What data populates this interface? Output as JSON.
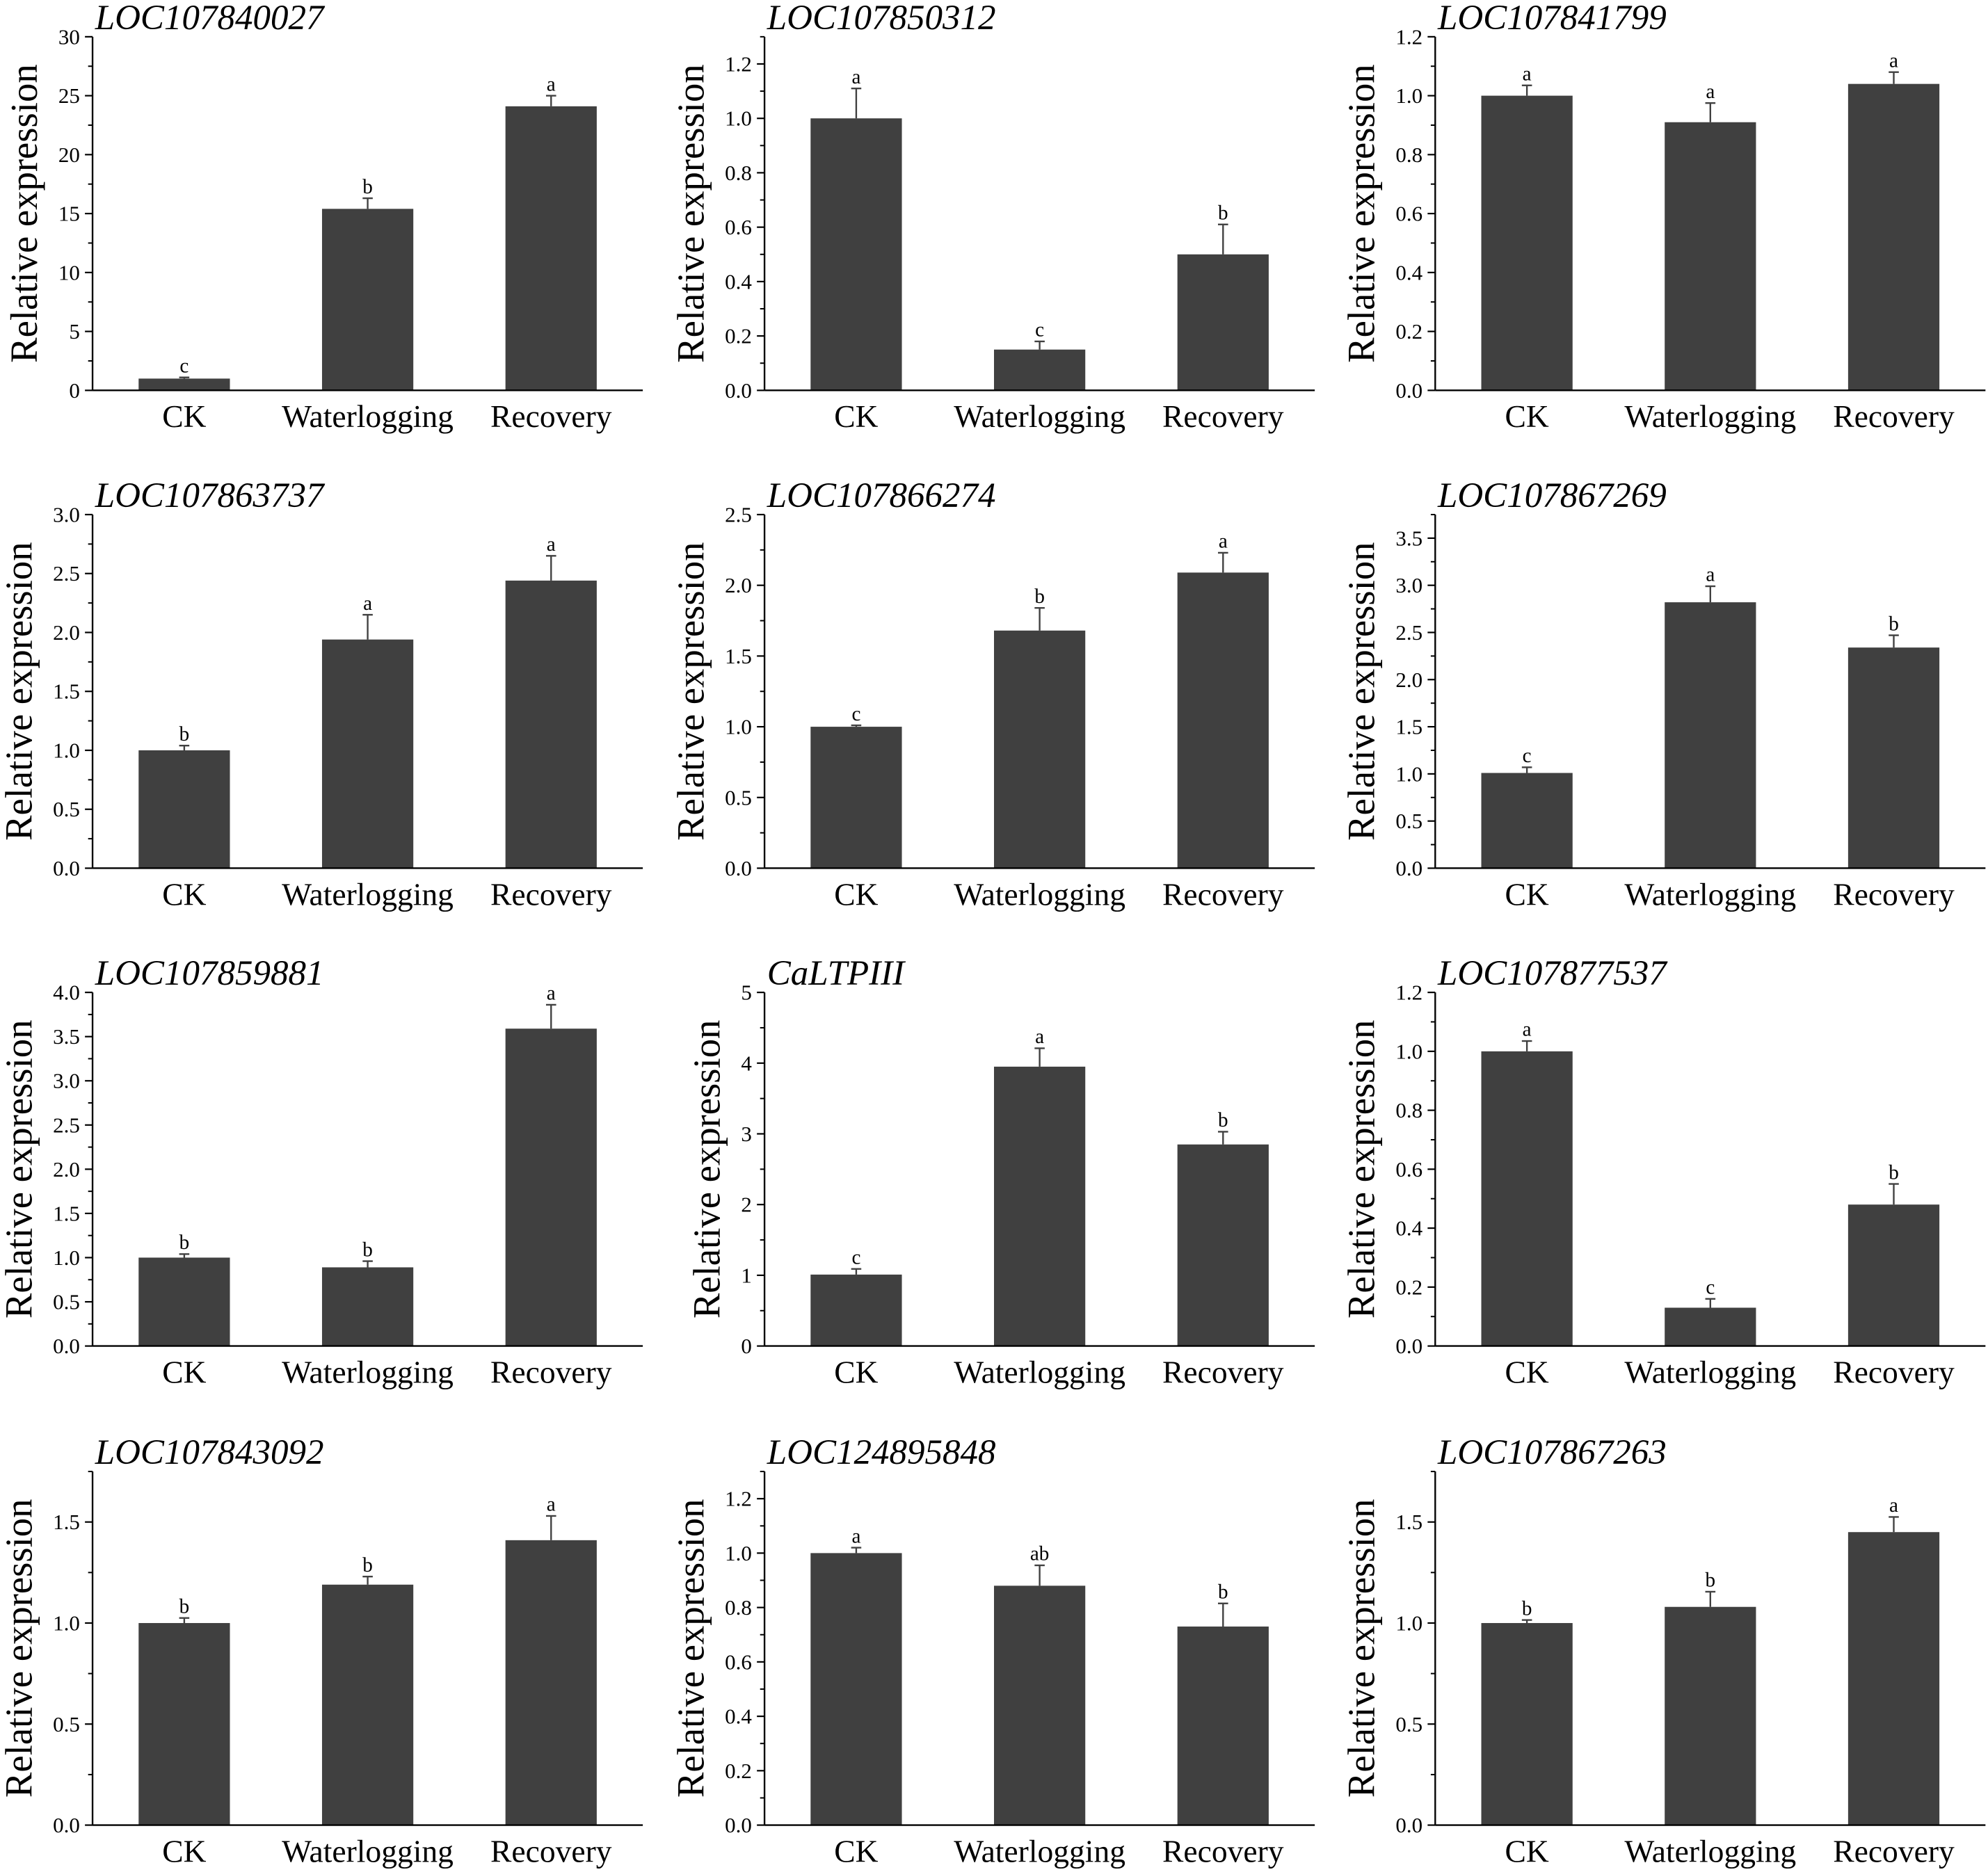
{
  "figure": {
    "bar_color": "#404040",
    "axis_color": "#000000",
    "background": "#ffffff"
  },
  "chart_data": [
    {
      "type": "bar",
      "title": "LOC107840027",
      "categories": [
        "CK",
        "Waterlogging",
        "Recovery"
      ],
      "values": [
        1.0,
        15.4,
        24.1
      ],
      "errors": [
        0.1,
        0.9,
        0.9
      ],
      "letters": [
        "c",
        "b",
        "a"
      ],
      "xlabel": "",
      "ylabel": "Relative expression",
      "ylim": [
        0,
        30
      ],
      "yticks": [
        "0",
        "5",
        "10",
        "15",
        "20",
        "25",
        "30"
      ]
    },
    {
      "type": "bar",
      "title": "LOC107850312",
      "categories": [
        "CK",
        "Waterlogging",
        "Recovery"
      ],
      "values": [
        1.0,
        0.15,
        0.5
      ],
      "errors": [
        0.11,
        0.03,
        0.11
      ],
      "letters": [
        "a",
        "c",
        "b"
      ],
      "xlabel": "",
      "ylabel": "Relative expression",
      "ylim": [
        0,
        1.3
      ],
      "yticks": [
        "0.0",
        "0.2",
        "0.4",
        "0.6",
        "0.8",
        "1.0",
        "1.2"
      ]
    },
    {
      "type": "bar",
      "title": "LOC107841799",
      "categories": [
        "CK",
        "Waterlogging",
        "Recovery"
      ],
      "values": [
        1.0,
        0.91,
        1.04
      ],
      "errors": [
        0.035,
        0.065,
        0.04
      ],
      "letters": [
        "a",
        "a",
        "a"
      ],
      "xlabel": "",
      "ylabel": "Relative expression",
      "ylim": [
        0,
        1.2
      ],
      "yticks": [
        "0.0",
        "0.2",
        "0.4",
        "0.6",
        "0.8",
        "1.0",
        "1.2"
      ]
    },
    {
      "type": "bar",
      "title": "LOC107863737",
      "categories": [
        "CK",
        "Waterlogging",
        "Recovery"
      ],
      "values": [
        1.0,
        1.94,
        2.44
      ],
      "errors": [
        0.04,
        0.21,
        0.21
      ],
      "letters": [
        "b",
        "a",
        "a"
      ],
      "xlabel": "",
      "ylabel": "Relative expression",
      "ylim": [
        0,
        3.0
      ],
      "yticks": [
        "0.0",
        "0.5",
        "1.0",
        "1.5",
        "2.0",
        "2.5",
        "3.0"
      ]
    },
    {
      "type": "bar",
      "title": "LOC107866274",
      "categories": [
        "CK",
        "Waterlogging",
        "Recovery"
      ],
      "values": [
        1.0,
        1.68,
        2.09
      ],
      "errors": [
        0.01,
        0.16,
        0.14
      ],
      "letters": [
        "c",
        "b",
        "a"
      ],
      "xlabel": "",
      "ylabel": "Relative expression",
      "ylim": [
        0,
        2.5
      ],
      "yticks": [
        "0.0",
        "0.5",
        "1.0",
        "1.5",
        "2.0",
        "2.5"
      ]
    },
    {
      "type": "bar",
      "title": "LOC107867269",
      "categories": [
        "CK",
        "Waterlogging",
        "Recovery"
      ],
      "values": [
        1.01,
        2.82,
        2.34
      ],
      "errors": [
        0.06,
        0.17,
        0.13
      ],
      "letters": [
        "c",
        "a",
        "b"
      ],
      "xlabel": "",
      "ylabel": "Relative expression",
      "ylim": [
        0,
        3.75
      ],
      "yticks": [
        "0.0",
        "0.5",
        "1.0",
        "1.5",
        "2.0",
        "2.5",
        "3.0",
        "3.5"
      ]
    },
    {
      "type": "bar",
      "title": "LOC107859881",
      "categories": [
        "CK",
        "Waterlogging",
        "Recovery"
      ],
      "values": [
        1.0,
        0.89,
        3.59
      ],
      "errors": [
        0.04,
        0.07,
        0.27
      ],
      "letters": [
        "b",
        "b",
        "a"
      ],
      "xlabel": "",
      "ylabel": "Relative expression",
      "ylim": [
        0,
        4.0
      ],
      "yticks": [
        "0.0",
        "0.5",
        "1.0",
        "1.5",
        "2.0",
        "2.5",
        "3.0",
        "3.5",
        "4.0"
      ]
    },
    {
      "type": "bar",
      "title": "CaLTPIII",
      "categories": [
        "CK",
        "Waterlogging",
        "Recovery"
      ],
      "values": [
        1.01,
        3.95,
        2.85
      ],
      "errors": [
        0.08,
        0.26,
        0.18
      ],
      "letters": [
        "c",
        "a",
        "b"
      ],
      "xlabel": "",
      "ylabel": "Relative expression",
      "ylim": [
        0,
        5
      ],
      "yticks": [
        "0",
        "1",
        "2",
        "3",
        "4",
        "5"
      ]
    },
    {
      "type": "bar",
      "title": "LOC107877537",
      "categories": [
        "CK",
        "Waterlogging",
        "Recovery"
      ],
      "values": [
        1.0,
        0.13,
        0.48
      ],
      "errors": [
        0.035,
        0.03,
        0.07
      ],
      "letters": [
        "a",
        "c",
        "b"
      ],
      "xlabel": "",
      "ylabel": "Relative expression",
      "ylim": [
        0,
        1.2
      ],
      "yticks": [
        "0.0",
        "0.2",
        "0.4",
        "0.6",
        "0.8",
        "1.0",
        "1.2"
      ]
    },
    {
      "type": "bar",
      "title": "LOC107843092",
      "categories": [
        "CK",
        "Waterlogging",
        "Recovery"
      ],
      "values": [
        1.0,
        1.19,
        1.41
      ],
      "errors": [
        0.025,
        0.04,
        0.12
      ],
      "letters": [
        "b",
        "b",
        "a"
      ],
      "xlabel": "",
      "ylabel": "Relative expression",
      "ylim": [
        0,
        1.75
      ],
      "yticks": [
        "0.0",
        "0.5",
        "1.0",
        "1.5"
      ]
    },
    {
      "type": "bar",
      "title": "LOC124895848",
      "categories": [
        "CK",
        "Waterlogging",
        "Recovery"
      ],
      "values": [
        1.0,
        0.88,
        0.73
      ],
      "errors": [
        0.02,
        0.075,
        0.085
      ],
      "letters": [
        "a",
        "ab",
        "b"
      ],
      "xlabel": "",
      "ylabel": "Relative expression",
      "ylim": [
        0,
        1.3
      ],
      "yticks": [
        "0.0",
        "0.2",
        "0.4",
        "0.6",
        "0.8",
        "1.0",
        "1.2"
      ]
    },
    {
      "type": "bar",
      "title": "LOC107867263",
      "categories": [
        "CK",
        "Waterlogging",
        "Recovery"
      ],
      "values": [
        1.0,
        1.08,
        1.45
      ],
      "errors": [
        0.015,
        0.075,
        0.075
      ],
      "letters": [
        "b",
        "b",
        "a"
      ],
      "xlabel": "",
      "ylabel": "Relative expression",
      "ylim": [
        0,
        1.75
      ],
      "yticks": [
        "0.0",
        "0.5",
        "1.0",
        "1.5"
      ]
    }
  ]
}
